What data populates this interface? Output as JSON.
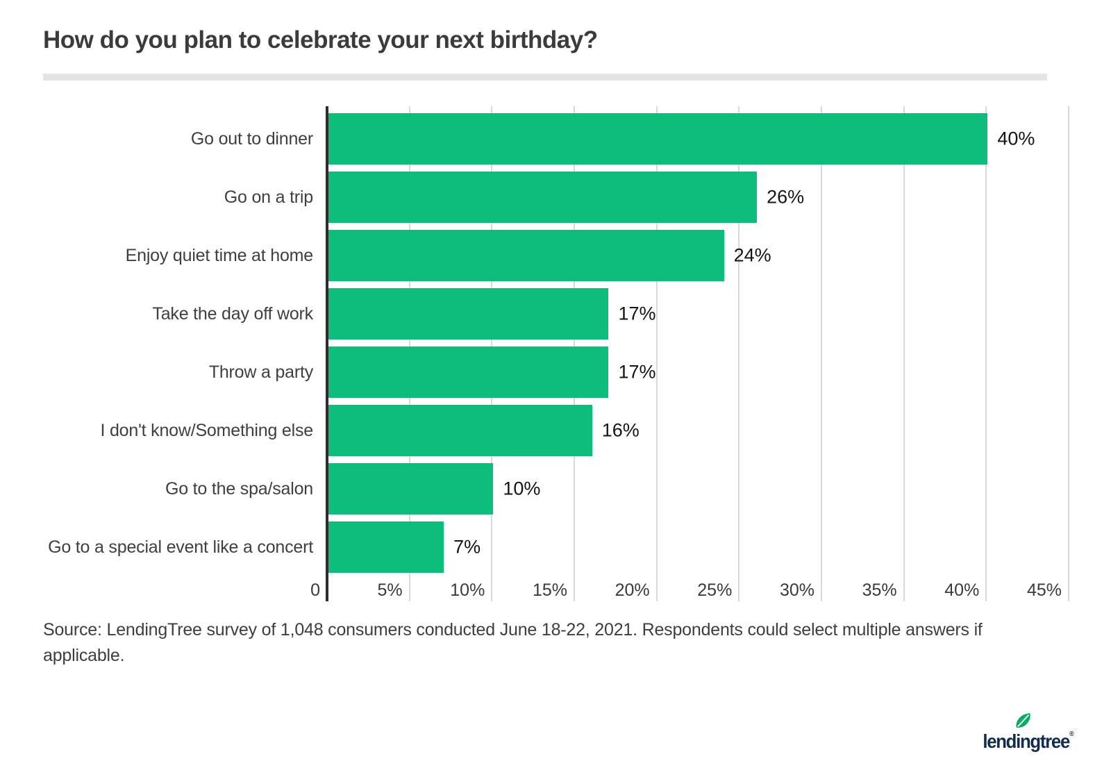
{
  "header": {
    "title": "How do you plan to celebrate your next birthday?"
  },
  "chart_data": {
    "type": "bar",
    "orientation": "horizontal",
    "title": "How do you plan to celebrate your next birthday?",
    "categories": [
      "Go out to dinner",
      "Go on a trip",
      "Enjoy quiet time at home",
      "Take the day off work",
      "Throw a party",
      "I don't know/Something else",
      "Go to the spa/salon",
      "Go to a special event like a concert"
    ],
    "values": [
      40,
      26,
      24,
      17,
      17,
      16,
      10,
      7
    ],
    "value_labels": [
      "40%",
      "26%",
      "24%",
      "17%",
      "17%",
      "16%",
      "10%",
      "7%"
    ],
    "xlabel": "",
    "ylabel": "",
    "xlim": [
      0,
      45
    ],
    "x_tick_values": [
      0,
      5,
      10,
      15,
      20,
      25,
      30,
      35,
      40,
      45
    ],
    "x_tick_labels": [
      "0",
      "5%",
      "10%",
      "15%",
      "20%",
      "25%",
      "30%",
      "35%",
      "40%",
      "45%"
    ],
    "grid": true,
    "legend_position": "none",
    "bar_color": "#0dbd7c"
  },
  "source_note": "Source: LendingTree survey of 1,048 consumers conducted June 18-22, 2021. Respondents could select multiple answers if applicable.",
  "footer": {
    "brand": "lendingtree",
    "registered_mark": "®",
    "brand_color": "#142b50",
    "leaf_color": "#00b164"
  },
  "colors": {
    "bar": "#0dbd7c",
    "axis_line": "#2d2d2d",
    "gridline": "#d9d9d9",
    "title_text": "#3b3b3b",
    "category_text": "#3f3f3f",
    "value_text": "#141414",
    "tick_text": "#3a3a3a",
    "divider": "#e4e4e4",
    "background": "#ffffff"
  }
}
